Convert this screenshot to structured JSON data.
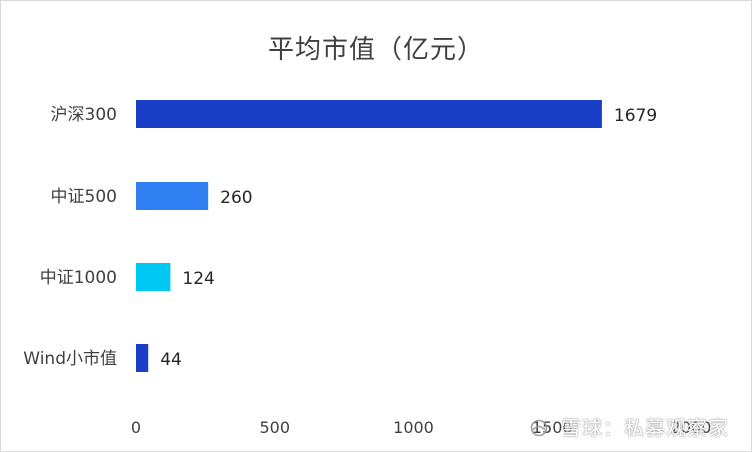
{
  "chart_data": {
    "type": "bar",
    "orientation": "horizontal",
    "title": "平均市值（亿元）",
    "categories": [
      "沪深300",
      "中证500",
      "中证1000",
      "Wind小市值"
    ],
    "values": [
      1679,
      260,
      124,
      44
    ],
    "colors": [
      "#1a3ec8",
      "#2f7ff2",
      "#00c8f5",
      "#1a3ec8"
    ],
    "xlim": [
      0,
      2000
    ],
    "xticks": [
      "0",
      "500",
      "1000",
      "1500",
      "2000"
    ],
    "xtick_values": [
      0,
      500,
      1000,
      1500,
      2000
    ],
    "grid": false,
    "legend": "none"
  },
  "watermark": {
    "text": "雪球：私募观察家"
  }
}
